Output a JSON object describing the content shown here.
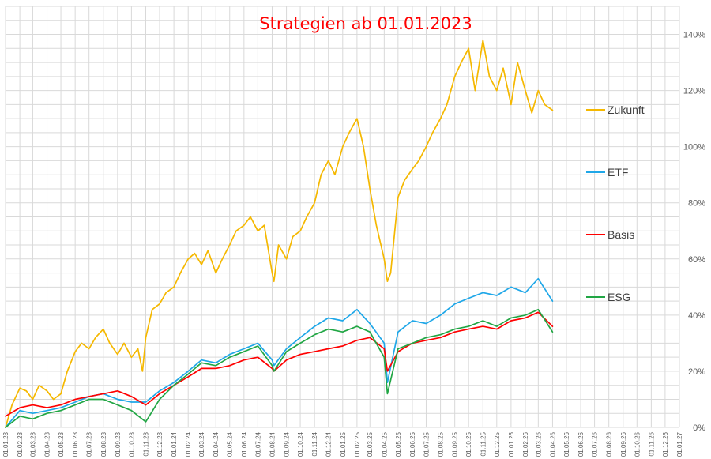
{
  "chart_data": {
    "type": "line",
    "title": "Strategien ab 01.01.2023",
    "xlabel": "",
    "ylabel": "",
    "ylim": [
      0,
      1.5
    ],
    "y_ticks": [
      {
        "value": 0.0,
        "label": "0%"
      },
      {
        "value": 0.2,
        "label": "20%"
      },
      {
        "value": 0.4,
        "label": "40%"
      },
      {
        "value": 0.6,
        "label": "60%"
      },
      {
        "value": 0.8,
        "label": "80%"
      },
      {
        "value": 1.0,
        "label": "100%"
      },
      {
        "value": 1.2,
        "label": "120%"
      },
      {
        "value": 1.4,
        "label": "140%"
      }
    ],
    "x_ticks": [
      "01.01.23",
      "01.02.23",
      "01.03.23",
      "01.04.23",
      "01.05.23",
      "01.06.23",
      "01.07.23",
      "01.08.23",
      "01.09.23",
      "01.10.23",
      "01.11.23",
      "01.12.23",
      "01.01.24",
      "01.02.24",
      "01.03.24",
      "01.04.24",
      "01.05.24",
      "01.06.24",
      "01.07.24",
      "01.08.24",
      "01.09.24",
      "01.10.24",
      "01.11.24",
      "01.12.24",
      "01.01.25",
      "01.02.25",
      "01.03.25",
      "01.04.25",
      "01.05.25",
      "01.06.25",
      "01.07.25",
      "01.08.25",
      "01.09.25",
      "01.10.25",
      "01.11.25",
      "01.12.25",
      "01.01.26",
      "01.02.26",
      "01.03.26",
      "01.04.26",
      "01.05.26",
      "01.06.26",
      "01.07.26",
      "01.08.26",
      "01.09.26",
      "01.10.26",
      "01.11.26",
      "01.12.26",
      "01.01.27"
    ],
    "grid": true,
    "legend_position": "right",
    "series": [
      {
        "name": "Zukunft",
        "color": "#f5b800",
        "x": [
          "01.01.23",
          "15.01.23",
          "01.02.23",
          "15.02.23",
          "01.03.23",
          "15.03.23",
          "01.04.23",
          "15.04.23",
          "01.05.23",
          "15.05.23",
          "01.06.23",
          "15.06.23",
          "01.07.23",
          "15.07.23",
          "01.08.23",
          "15.08.23",
          "01.09.23",
          "15.09.23",
          "01.10.23",
          "15.10.23",
          "25.10.23",
          "01.11.23",
          "15.11.23",
          "01.12.23",
          "15.12.23",
          "01.01.24",
          "15.01.24",
          "01.02.24",
          "15.02.24",
          "01.03.24",
          "15.03.24",
          "01.04.24",
          "15.04.24",
          "01.05.24",
          "15.05.24",
          "01.06.24",
          "15.06.24",
          "01.07.24",
          "15.07.24",
          "01.08.24",
          "05.08.24",
          "15.08.24",
          "01.09.24",
          "15.09.24",
          "01.10.24",
          "15.10.24",
          "01.11.24",
          "15.11.24",
          "01.12.24",
          "15.12.24",
          "01.01.25",
          "15.01.25",
          "01.02.25",
          "15.02.25",
          "01.03.25",
          "15.03.25",
          "01.04.25",
          "08.04.25",
          "15.04.25",
          "01.05.25",
          "15.05.25",
          "01.06.25",
          "15.06.25",
          "01.07.25",
          "15.07.25",
          "01.08.25",
          "15.08.25",
          "01.09.25",
          "15.09.25",
          "01.10.25",
          "15.10.25",
          "01.11.25",
          "15.11.25",
          "01.12.25",
          "15.12.25",
          "01.01.26",
          "15.01.26",
          "01.02.26",
          "15.02.26",
          "01.03.26",
          "15.03.26",
          "01.04.26"
        ],
        "y": [
          0.0,
          0.08,
          0.14,
          0.13,
          0.1,
          0.15,
          0.13,
          0.1,
          0.12,
          0.2,
          0.27,
          0.3,
          0.28,
          0.32,
          0.35,
          0.3,
          0.26,
          0.3,
          0.25,
          0.28,
          0.2,
          0.32,
          0.42,
          0.44,
          0.48,
          0.5,
          0.55,
          0.6,
          0.62,
          0.58,
          0.63,
          0.55,
          0.6,
          0.65,
          0.7,
          0.72,
          0.75,
          0.7,
          0.72,
          0.55,
          0.52,
          0.65,
          0.6,
          0.68,
          0.7,
          0.75,
          0.8,
          0.9,
          0.95,
          0.9,
          1.0,
          1.05,
          1.1,
          1.0,
          0.85,
          0.72,
          0.6,
          0.52,
          0.55,
          0.82,
          0.88,
          0.92,
          0.95,
          1.0,
          1.05,
          1.1,
          1.15,
          1.25,
          1.3,
          1.35,
          1.2,
          1.38,
          1.25,
          1.2,
          1.28,
          1.15,
          1.3,
          1.2,
          1.12,
          1.2,
          1.15,
          1.13
        ]
      },
      {
        "name": "ETF",
        "color": "#1fa7e8",
        "x": [
          "01.01.23",
          "01.02.23",
          "01.03.23",
          "01.04.23",
          "01.05.23",
          "01.06.23",
          "01.07.23",
          "01.08.23",
          "01.09.23",
          "01.10.23",
          "01.11.23",
          "01.12.23",
          "01.01.24",
          "01.02.24",
          "01.03.24",
          "01.04.24",
          "01.05.24",
          "01.06.24",
          "01.07.24",
          "01.08.24",
          "05.08.24",
          "01.09.24",
          "01.10.24",
          "01.11.24",
          "01.12.24",
          "01.01.25",
          "01.02.25",
          "01.03.25",
          "01.04.25",
          "08.04.25",
          "01.05.25",
          "01.06.25",
          "01.07.25",
          "01.08.25",
          "01.09.25",
          "01.10.25",
          "01.11.25",
          "01.12.25",
          "01.01.26",
          "01.02.26",
          "01.03.26",
          "01.04.26"
        ],
        "y": [
          0.0,
          0.06,
          0.05,
          0.06,
          0.07,
          0.09,
          0.11,
          0.12,
          0.1,
          0.09,
          0.09,
          0.13,
          0.16,
          0.2,
          0.24,
          0.23,
          0.26,
          0.28,
          0.3,
          0.24,
          0.22,
          0.28,
          0.32,
          0.36,
          0.39,
          0.38,
          0.42,
          0.37,
          0.3,
          0.16,
          0.34,
          0.38,
          0.37,
          0.4,
          0.44,
          0.46,
          0.48,
          0.47,
          0.5,
          0.48,
          0.53,
          0.45
        ]
      },
      {
        "name": "Basis",
        "color": "#ff0000",
        "x": [
          "01.01.23",
          "01.02.23",
          "01.03.23",
          "01.04.23",
          "01.05.23",
          "01.06.23",
          "01.07.23",
          "01.08.23",
          "01.09.23",
          "01.10.23",
          "01.11.23",
          "01.12.23",
          "01.01.24",
          "01.02.24",
          "01.03.24",
          "01.04.24",
          "01.05.24",
          "01.06.24",
          "01.07.24",
          "01.08.24",
          "05.08.24",
          "01.09.24",
          "01.10.24",
          "01.11.24",
          "01.12.24",
          "01.01.25",
          "01.02.25",
          "01.03.25",
          "01.04.25",
          "08.04.25",
          "01.05.25",
          "01.06.25",
          "01.07.25",
          "01.08.25",
          "01.09.25",
          "01.10.25",
          "01.11.25",
          "01.12.25",
          "01.01.26",
          "01.02.26",
          "01.03.26",
          "01.04.26"
        ],
        "y": [
          0.04,
          0.07,
          0.08,
          0.07,
          0.08,
          0.1,
          0.11,
          0.12,
          0.13,
          0.11,
          0.08,
          0.12,
          0.15,
          0.18,
          0.21,
          0.21,
          0.22,
          0.24,
          0.25,
          0.21,
          0.2,
          0.24,
          0.26,
          0.27,
          0.28,
          0.29,
          0.31,
          0.32,
          0.28,
          0.2,
          0.27,
          0.3,
          0.31,
          0.32,
          0.34,
          0.35,
          0.36,
          0.35,
          0.38,
          0.39,
          0.41,
          0.36
        ]
      },
      {
        "name": "ESG",
        "color": "#21a644",
        "x": [
          "01.01.23",
          "01.02.23",
          "01.03.23",
          "01.04.23",
          "01.05.23",
          "01.06.23",
          "01.07.23",
          "01.08.23",
          "01.09.23",
          "01.10.23",
          "01.11.23",
          "01.12.23",
          "01.01.24",
          "01.02.24",
          "01.03.24",
          "01.04.24",
          "01.05.24",
          "01.06.24",
          "01.07.24",
          "01.08.24",
          "05.08.24",
          "01.09.24",
          "01.10.24",
          "01.11.24",
          "01.12.24",
          "01.01.25",
          "01.02.25",
          "01.03.25",
          "01.04.25",
          "08.04.25",
          "01.05.25",
          "01.06.25",
          "01.07.25",
          "01.08.25",
          "01.09.25",
          "01.10.25",
          "01.11.25",
          "01.12.25",
          "01.01.26",
          "01.02.26",
          "01.03.26",
          "01.04.26"
        ],
        "y": [
          0.0,
          0.04,
          0.03,
          0.05,
          0.06,
          0.08,
          0.1,
          0.1,
          0.08,
          0.06,
          0.02,
          0.1,
          0.15,
          0.19,
          0.23,
          0.22,
          0.25,
          0.27,
          0.29,
          0.22,
          0.2,
          0.27,
          0.3,
          0.33,
          0.35,
          0.34,
          0.36,
          0.34,
          0.25,
          0.12,
          0.28,
          0.3,
          0.32,
          0.33,
          0.35,
          0.36,
          0.38,
          0.36,
          0.39,
          0.4,
          0.42,
          0.34
        ]
      }
    ]
  }
}
